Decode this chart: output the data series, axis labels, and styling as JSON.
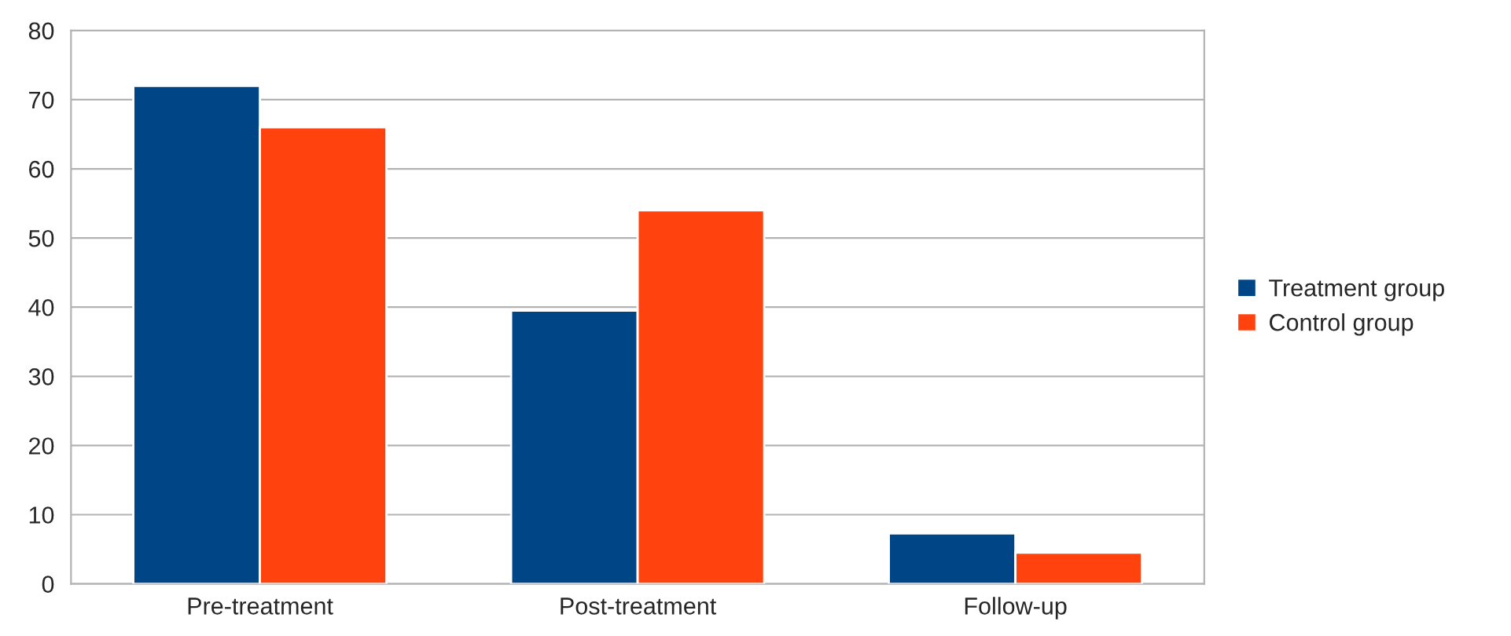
{
  "chart_data": {
    "type": "bar",
    "categories": [
      "Pre-treatment",
      "Post-treatment",
      "Follow-up"
    ],
    "series": [
      {
        "name": "Treatment group",
        "color": "#004586",
        "values": [
          72,
          39.5,
          7.3
        ]
      },
      {
        "name": "Control group",
        "color": "#ff420e",
        "values": [
          66,
          54,
          4.5
        ]
      }
    ],
    "ylim": [
      0,
      80
    ],
    "yticks": [
      0,
      10,
      20,
      30,
      40,
      50,
      60,
      70,
      80
    ],
    "grid": "y",
    "legend": "right"
  }
}
